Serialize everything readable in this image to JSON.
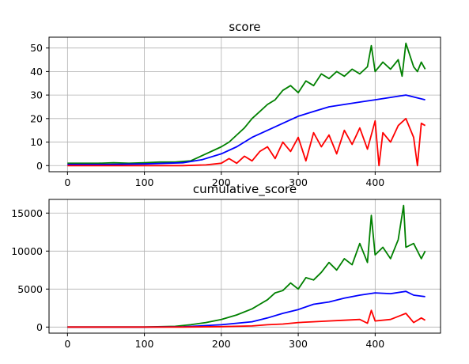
{
  "chart_data": [
    {
      "type": "line",
      "title": "score",
      "xlabel": "",
      "ylabel": "",
      "xlim": [
        -24,
        485
      ],
      "ylim": [
        -2.6,
        54.6
      ],
      "xticks": [
        0,
        100,
        200,
        300,
        400
      ],
      "yticks": [
        0,
        10,
        20,
        30,
        40,
        50
      ],
      "grid": true,
      "series": [
        {
          "color": "#008000",
          "x": [
            0,
            20,
            40,
            60,
            80,
            100,
            120,
            140,
            160,
            170,
            180,
            190,
            200,
            210,
            220,
            230,
            240,
            250,
            260,
            270,
            280,
            290,
            300,
            310,
            320,
            330,
            340,
            350,
            360,
            370,
            380,
            390,
            395,
            400,
            410,
            420,
            430,
            435,
            440,
            450,
            455,
            460,
            465
          ],
          "values": [
            1,
            1,
            1,
            1.2,
            1,
            1.2,
            1.5,
            1.5,
            2,
            3.5,
            5,
            6.5,
            8,
            10,
            13,
            16,
            20,
            23,
            26,
            28,
            32,
            34,
            31,
            36,
            34,
            39,
            37,
            40,
            38,
            41,
            39,
            42,
            51,
            40,
            44,
            41,
            45,
            38,
            52,
            42,
            40,
            44,
            41
          ]
        },
        {
          "color": "#0000ff",
          "x": [
            0,
            50,
            100,
            150,
            175,
            200,
            220,
            240,
            260,
            280,
            300,
            320,
            340,
            360,
            380,
            400,
            420,
            440,
            465
          ],
          "values": [
            0.5,
            0.5,
            0.7,
            1.2,
            2.5,
            5,
            8,
            12,
            15,
            18,
            21,
            23,
            25,
            26,
            27,
            28,
            29,
            30,
            28
          ]
        },
        {
          "color": "#ff0000",
          "x": [
            0,
            100,
            150,
            180,
            200,
            210,
            220,
            230,
            240,
            250,
            260,
            270,
            280,
            290,
            300,
            310,
            320,
            330,
            340,
            350,
            360,
            370,
            380,
            390,
            400,
            405,
            410,
            420,
            430,
            440,
            450,
            455,
            460,
            465
          ],
          "values": [
            0,
            0,
            0,
            0.3,
            1,
            3,
            1,
            4,
            2,
            6,
            8,
            3,
            10,
            6,
            12,
            2,
            14,
            8,
            13,
            5,
            15,
            9,
            16,
            7,
            19,
            0,
            14,
            10,
            17,
            20,
            12,
            0,
            18,
            17
          ]
        }
      ]
    },
    {
      "type": "line",
      "title": "cumulative_score",
      "xlabel": "",
      "ylabel": "",
      "xlim": [
        -24,
        485
      ],
      "ylim": [
        -800,
        16800
      ],
      "xticks": [
        0,
        100,
        200,
        300,
        400
      ],
      "yticks": [
        0,
        5000,
        10000,
        15000
      ],
      "grid": true,
      "series": [
        {
          "color": "#008000",
          "x": [
            0,
            100,
            140,
            160,
            180,
            200,
            220,
            240,
            250,
            260,
            270,
            280,
            290,
            300,
            310,
            320,
            330,
            340,
            350,
            360,
            370,
            380,
            390,
            395,
            400,
            410,
            420,
            430,
            437,
            440,
            450,
            460,
            465
          ],
          "values": [
            0,
            0,
            100,
            300,
            600,
            1000,
            1600,
            2400,
            3000,
            3600,
            4500,
            4800,
            5800,
            5000,
            6500,
            6200,
            7200,
            8500,
            7500,
            9000,
            8200,
            11000,
            8500,
            14700,
            9500,
            10500,
            9000,
            11500,
            16000,
            10500,
            11000,
            9000,
            10000
          ]
        },
        {
          "color": "#0000ff",
          "x": [
            0,
            100,
            150,
            200,
            240,
            260,
            280,
            300,
            320,
            340,
            360,
            380,
            400,
            420,
            440,
            450,
            465
          ],
          "values": [
            0,
            0,
            30,
            300,
            700,
            1200,
            1800,
            2300,
            3000,
            3300,
            3800,
            4200,
            4500,
            4400,
            4700,
            4200,
            4000
          ]
        },
        {
          "color": "#ff0000",
          "x": [
            0,
            150,
            200,
            240,
            260,
            280,
            300,
            320,
            340,
            360,
            380,
            390,
            395,
            400,
            420,
            440,
            450,
            460,
            465
          ],
          "values": [
            0,
            0,
            50,
            150,
            300,
            400,
            600,
            700,
            800,
            900,
            1000,
            500,
            2200,
            800,
            1000,
            1800,
            600,
            1200,
            900
          ]
        }
      ]
    }
  ]
}
